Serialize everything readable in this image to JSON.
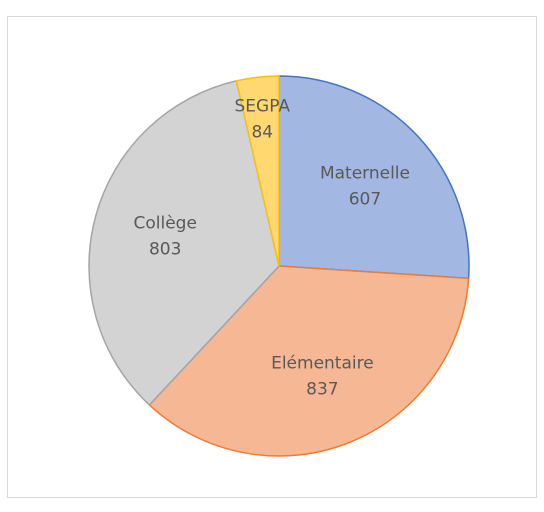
{
  "chart_data": {
    "type": "pie",
    "categories": [
      "Maternelle",
      "Elémentaire",
      "Collège",
      "SEGPA"
    ],
    "values": [
      607,
      837,
      803,
      84
    ],
    "colors": [
      "#a3b7e3",
      "#f6b795",
      "#d3d3d3",
      "#ffd872"
    ],
    "edge_colors": [
      "#4472c4",
      "#ed7d31",
      "#a5a5a5",
      "#ffc000"
    ]
  }
}
